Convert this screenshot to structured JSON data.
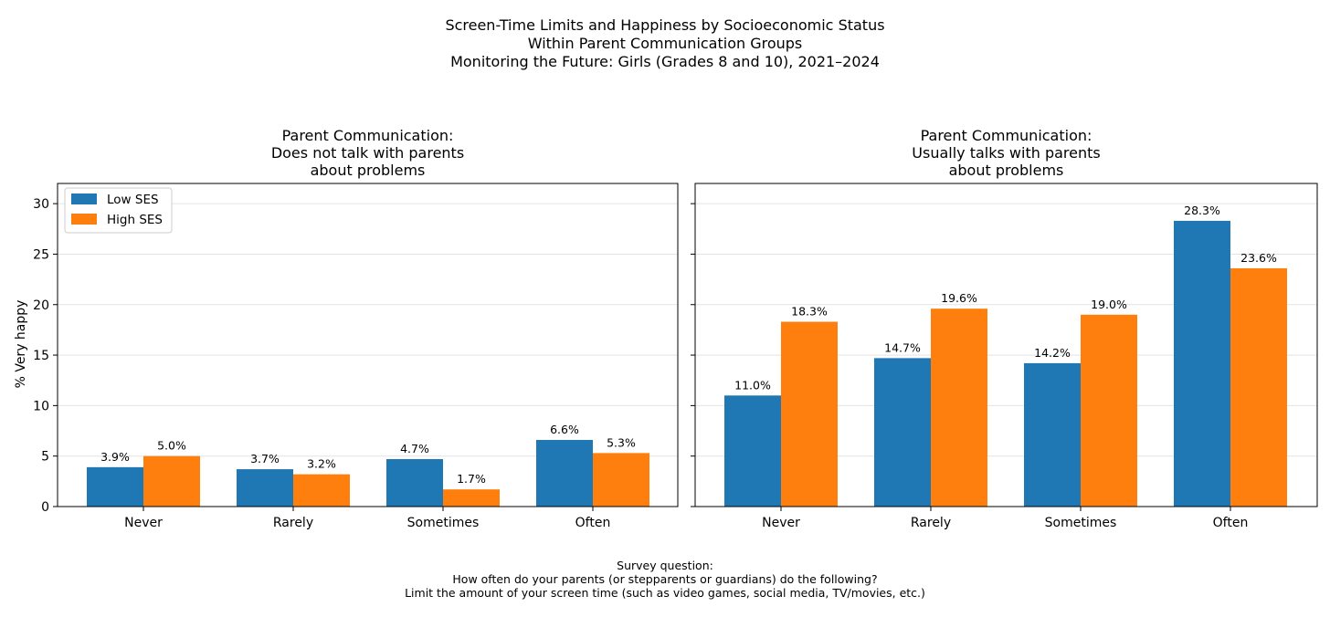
{
  "chart_data": {
    "type": "bar",
    "title_lines": [
      "Screen-Time Limits and Happiness by Socioeconomic Status",
      "Within Parent Communication Groups",
      "Monitoring the Future: Girls (Grades 8 and 10), 2021–2024"
    ],
    "ylabel": "% Very happy",
    "ylim": [
      0,
      32
    ],
    "yticks": [
      0,
      5,
      10,
      15,
      20,
      25,
      30
    ],
    "grid": true,
    "legend_position": "top-left",
    "colors": {
      "Low SES": "#1f77b4",
      "High SES": "#ff7f0e"
    },
    "categories": [
      "Never",
      "Rarely",
      "Sometimes",
      "Often"
    ],
    "panels": [
      {
        "title_lines": [
          "Parent Communication:",
          "Does not talk with parents",
          "about problems"
        ],
        "series": [
          {
            "name": "Low SES",
            "values": [
              3.9,
              3.7,
              4.7,
              6.6
            ],
            "labels": [
              "3.9%",
              "3.7%",
              "4.7%",
              "6.6%"
            ]
          },
          {
            "name": "High SES",
            "values": [
              5.0,
              3.2,
              1.7,
              5.3
            ],
            "labels": [
              "5.0%",
              "3.2%",
              "1.7%",
              "5.3%"
            ]
          }
        ]
      },
      {
        "title_lines": [
          "Parent Communication:",
          "Usually talks with parents",
          "about problems"
        ],
        "series": [
          {
            "name": "Low SES",
            "values": [
              11.0,
              14.7,
              14.2,
              28.3
            ],
            "labels": [
              "11.0%",
              "14.7%",
              "14.2%",
              "28.3%"
            ]
          },
          {
            "name": "High SES",
            "values": [
              18.3,
              19.6,
              19.0,
              23.6
            ],
            "labels": [
              "18.3%",
              "19.6%",
              "19.0%",
              "23.6%"
            ]
          }
        ]
      }
    ],
    "footnote_lines": [
      "Survey question:",
      "How often do your parents (or stepparents or guardians) do the following?",
      "Limit the amount of your screen time (such as video games, social media, TV/movies, etc.)"
    ]
  }
}
